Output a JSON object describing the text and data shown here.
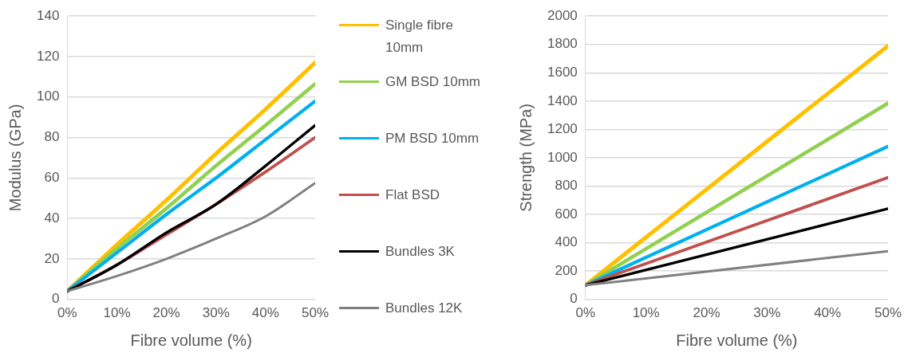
{
  "chart_data": [
    {
      "type": "line",
      "xlabel": "Fibre volume (%)",
      "ylabel": "Modulus (GPa)",
      "x": [
        0,
        10,
        20,
        30,
        40,
        50
      ],
      "xlim": [
        0,
        50
      ],
      "xticks": [
        {
          "value": 0,
          "label": "0%"
        },
        {
          "value": 10,
          "label": "10%"
        },
        {
          "value": 20,
          "label": "20%"
        },
        {
          "value": 30,
          "label": "30%"
        },
        {
          "value": 40,
          "label": "40%"
        },
        {
          "value": 50,
          "label": "50%"
        }
      ],
      "ylim": [
        0,
        140
      ],
      "yticks": [
        0,
        20,
        40,
        60,
        80,
        100,
        120,
        140
      ],
      "grid": "y",
      "legend": "right",
      "marker": "none",
      "line_style": "solid",
      "series": [
        {
          "name": "Single fibre 10mm",
          "color": "#ffc000",
          "values": [
            4,
            27,
            49,
            72,
            94,
            117
          ]
        },
        {
          "name": "GM BSD 10mm",
          "color": "#92d050",
          "values": [
            4,
            25,
            45,
            66,
            86,
            106.5
          ]
        },
        {
          "name": "PM BSD 10mm",
          "color": "#00b0f0",
          "values": [
            4,
            23,
            42,
            60,
            79,
            98
          ]
        },
        {
          "name": "Flat BSD",
          "color": "#c0504d",
          "values": [
            4,
            17,
            32,
            47,
            63,
            80
          ]
        },
        {
          "name": "Bundles 3K",
          "color": "#000000",
          "values": [
            4,
            17,
            33,
            47,
            66,
            86
          ]
        },
        {
          "name": "Bundles 12K",
          "color": "#808080",
          "values": [
            4,
            11.5,
            20,
            30,
            41,
            57.5
          ]
        }
      ]
    },
    {
      "type": "line",
      "xlabel": "Fibre volume (%)",
      "ylabel": "Strength (MPa)",
      "x": [
        0,
        50
      ],
      "xlim": [
        0,
        50
      ],
      "xticks": [
        {
          "value": 0,
          "label": "0%"
        },
        {
          "value": 10,
          "label": "10%"
        },
        {
          "value": 20,
          "label": "20%"
        },
        {
          "value": 30,
          "label": "30%"
        },
        {
          "value": 40,
          "label": "40%"
        },
        {
          "value": 50,
          "label": "50%"
        }
      ],
      "ylim": [
        0,
        2000
      ],
      "yticks": [
        0,
        200,
        400,
        600,
        800,
        1000,
        1200,
        1400,
        1600,
        1800,
        2000
      ],
      "grid": "y",
      "legend": false,
      "marker": "none",
      "line_style": "solid",
      "series": [
        {
          "color": "#ffc000",
          "values": [
            100,
            1790
          ]
        },
        {
          "color": "#92d050",
          "values": [
            100,
            1385
          ]
        },
        {
          "color": "#00b0f0",
          "values": [
            100,
            1080
          ]
        },
        {
          "color": "#c0504d",
          "values": [
            100,
            860
          ]
        },
        {
          "color": "#000000",
          "values": [
            100,
            640
          ]
        },
        {
          "color": "#808080",
          "values": [
            100,
            340
          ]
        }
      ]
    }
  ]
}
